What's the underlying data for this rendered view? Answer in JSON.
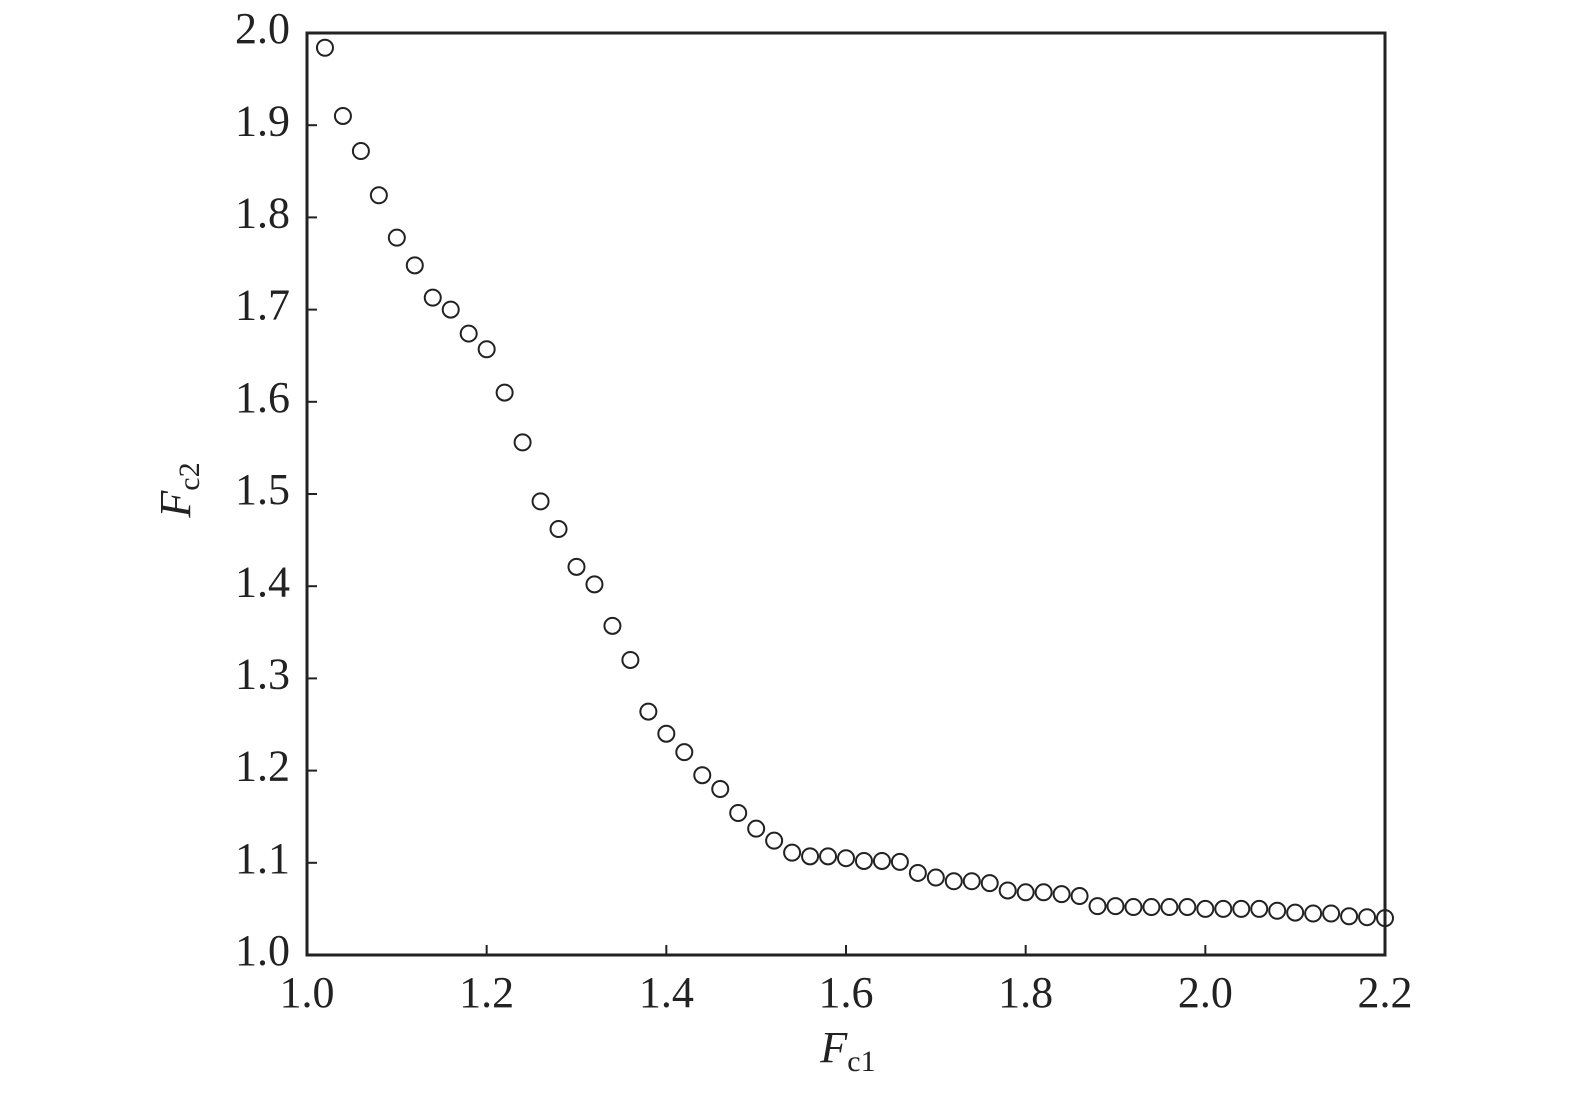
{
  "chart_data": {
    "type": "scatter",
    "xlabel": "F",
    "xlabel_sub": "c1",
    "ylabel": "F",
    "ylabel_sub": "c2",
    "x": [
      1.02,
      1.04,
      1.06,
      1.08,
      1.1,
      1.12,
      1.14,
      1.16,
      1.18,
      1.2,
      1.22,
      1.24,
      1.26,
      1.28,
      1.3,
      1.32,
      1.34,
      1.36,
      1.38,
      1.4,
      1.42,
      1.44,
      1.46,
      1.48,
      1.5,
      1.52,
      1.54,
      1.56,
      1.58,
      1.6,
      1.62,
      1.64,
      1.66,
      1.68,
      1.7,
      1.72,
      1.74,
      1.76,
      1.78,
      1.8,
      1.82,
      1.84,
      1.86,
      1.88,
      1.9,
      1.92,
      1.94,
      1.96,
      1.98,
      2.0,
      2.02,
      2.04,
      2.06,
      2.08,
      2.1,
      2.12,
      2.14,
      2.16,
      2.18,
      2.2
    ],
    "values": [
      1.984,
      1.91,
      1.872,
      1.824,
      1.778,
      1.748,
      1.713,
      1.7,
      1.674,
      1.657,
      1.61,
      1.556,
      1.492,
      1.462,
      1.421,
      1.402,
      1.357,
      1.32,
      1.264,
      1.24,
      1.22,
      1.195,
      1.18,
      1.154,
      1.137,
      1.124,
      1.111,
      1.107,
      1.107,
      1.105,
      1.102,
      1.102,
      1.101,
      1.089,
      1.084,
      1.08,
      1.08,
      1.078,
      1.07,
      1.068,
      1.068,
      1.066,
      1.064,
      1.053,
      1.053,
      1.052,
      1.052,
      1.052,
      1.052,
      1.05,
      1.05,
      1.05,
      1.05,
      1.048,
      1.046,
      1.045,
      1.045,
      1.042,
      1.041,
      1.04
    ],
    "color": "#222222",
    "xlim": [
      1.0,
      2.2
    ],
    "xticks": [
      {
        "value": 1,
        "label": "1.0"
      },
      1.2,
      1.4,
      1.6,
      1.8,
      {
        "value": 2,
        "label": "2.0"
      },
      2.2
    ],
    "ylim": [
      1.0,
      2.0
    ],
    "yticks": [
      {
        "value": 1,
        "label": "1.0"
      },
      1.1,
      1.2,
      1.3,
      1.4,
      1.5,
      1.6,
      1.7,
      1.8,
      1.9,
      {
        "value": 2,
        "label": "2.0"
      }
    ],
    "grid": false
  }
}
